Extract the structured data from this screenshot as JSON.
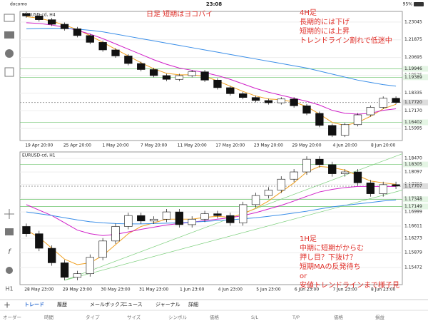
{
  "status_bar": {
    "carrier": "docomo",
    "time": "23:08",
    "battery": "95%"
  },
  "left_toolbar": [
    "f",
    "H1"
  ],
  "charts": [
    {
      "symbol": "EURUSD-cd, H4",
      "ylim": [
        1.152,
        1.2375
      ],
      "yticks": [
        1.23045,
        1.21875,
        1.20695,
        1.19525,
        1.18335,
        {
          "value": 1.1717,
          "label": "1.17170"
        },
        1.15995
      ],
      "levels": [
        1.19946,
        1.19389,
        1.16402
      ],
      "current": {
        "value": 1.1772,
        "label": "1.17720"
      },
      "dates": [
        "19 Apr 20:00",
        "25 Apr 20:00",
        "1 May 20:00",
        "7 May 20:00",
        "11 May 20:00",
        "17 May 20:00",
        "23 May 20:00",
        "29 May 20:00",
        "4 Jun 20:00",
        "8 Jun 20:00"
      ],
      "candles": {
        "open": [
          1.236,
          1.2345,
          1.232,
          1.229,
          1.226,
          1.2215,
          1.217,
          1.212,
          1.208,
          1.203,
          1.199,
          1.195,
          1.1925,
          1.195,
          1.1975,
          1.192,
          1.187,
          1.183,
          1.1805,
          1.1785,
          1.177,
          1.1795,
          1.175,
          1.17,
          1.162,
          1.1555,
          1.1625,
          1.169,
          1.174,
          1.18
        ],
        "high": [
          1.2372,
          1.2357,
          1.2332,
          1.2302,
          1.2272,
          1.2227,
          1.2182,
          1.2132,
          1.2092,
          1.2042,
          1.2002,
          1.1962,
          1.1962,
          1.1987,
          1.1987,
          1.1932,
          1.1882,
          1.1842,
          1.1817,
          1.1797,
          1.1807,
          1.1807,
          1.1762,
          1.1712,
          1.1632,
          1.1637,
          1.1702,
          1.1752,
          1.1812,
          1.1812
        ],
        "low": [
          1.2333,
          1.2308,
          1.2278,
          1.2248,
          1.2203,
          1.2158,
          1.2108,
          1.2068,
          1.2018,
          1.1978,
          1.1938,
          1.1913,
          1.1913,
          1.1938,
          1.1908,
          1.1858,
          1.1818,
          1.1793,
          1.1773,
          1.1758,
          1.1758,
          1.1738,
          1.1688,
          1.1608,
          1.1543,
          1.1543,
          1.1613,
          1.1678,
          1.1728,
          1.176
        ],
        "close": [
          1.2345,
          1.232,
          1.229,
          1.226,
          1.2215,
          1.217,
          1.212,
          1.208,
          1.203,
          1.199,
          1.195,
          1.1925,
          1.195,
          1.1975,
          1.192,
          1.187,
          1.183,
          1.1805,
          1.1785,
          1.177,
          1.1795,
          1.175,
          1.17,
          1.162,
          1.1555,
          1.1625,
          1.169,
          1.174,
          1.18,
          1.1772
        ]
      },
      "ma": [
        {
          "color": "#f0a020",
          "values": [
            1.234,
            1.233,
            1.231,
            1.2285,
            1.2255,
            1.2215,
            1.217,
            1.2125,
            1.208,
            1.2035,
            1.1995,
            1.1965,
            1.1955,
            1.1955,
            1.1945,
            1.1915,
            1.188,
            1.1845,
            1.1815,
            1.1795,
            1.179,
            1.1775,
            1.1745,
            1.1695,
            1.164,
            1.162,
            1.164,
            1.168,
            1.173,
            1.176
          ]
        },
        {
          "color": "#d020c8",
          "values": [
            1.23,
            1.2295,
            1.2285,
            1.227,
            1.225,
            1.2225,
            1.2195,
            1.216,
            1.2125,
            1.209,
            1.2055,
            1.2025,
            1.2,
            1.1985,
            1.197,
            1.195,
            1.1925,
            1.1895,
            1.1865,
            1.184,
            1.182,
            1.18,
            1.178,
            1.1755,
            1.172,
            1.17,
            1.1695,
            1.17,
            1.172,
            1.173
          ]
        },
        {
          "color": "#3a8ee8",
          "values": [
            1.226,
            1.2262,
            1.2263,
            1.2262,
            1.2258,
            1.225,
            1.224,
            1.2225,
            1.221,
            1.2195,
            1.218,
            1.2165,
            1.215,
            1.2135,
            1.212,
            1.2105,
            1.209,
            1.2075,
            1.206,
            1.2045,
            1.203,
            1.2015,
            1.2,
            1.198,
            1.196,
            1.194,
            1.192,
            1.1905,
            1.189,
            1.188
          ]
        }
      ],
      "annotations": [
        [
          "日足 短期はヨコバイ"
        ],
        [
          "4H足",
          "長期的には下げ",
          "短期的には上昇",
          "トレンドライン割れで低迷中"
        ]
      ]
    },
    {
      "symbol": "EURUSD-cd, H1",
      "ylim": [
        1.15,
        1.1865
      ],
      "yticks": [
        {
          "value": 1.1847,
          "label": "1.18470"
        },
        1.18097,
        {
          "value": 1.1776,
          "label": "1.17760"
        },
        1.17375,
        1.16999,
        1.16611,
        1.16273,
        1.15879,
        1.15472
      ],
      "levels": [
        1.18305,
        1.17348,
        1.17149
      ],
      "current": 1.17707,
      "dates": [
        "28 May 23:00",
        "29 May 23:00",
        "30 May 23:00",
        "31 May 23:00",
        "1 Jun 23:00",
        "4 Jun 23:00",
        "5 Jun 23:00",
        "6 Jun 23:00",
        "7 Jun 23:00",
        "8 Jun 23:00"
      ],
      "candles": {
        "open": [
          1.166,
          1.164,
          1.16,
          1.156,
          1.152,
          1.153,
          1.1575,
          1.162,
          1.166,
          1.169,
          1.1675,
          1.168,
          1.17,
          1.1665,
          1.168,
          1.1695,
          1.169,
          1.167,
          1.172,
          1.1745,
          1.176,
          1.179,
          1.181,
          1.1845,
          1.183,
          1.1805,
          1.181,
          1.178,
          1.175,
          1.1775
        ],
        "high": [
          1.1668,
          1.1648,
          1.1608,
          1.1568,
          1.1538,
          1.1583,
          1.1628,
          1.1668,
          1.1698,
          1.1698,
          1.1688,
          1.1708,
          1.1708,
          1.1688,
          1.1703,
          1.1703,
          1.1698,
          1.1728,
          1.1753,
          1.1768,
          1.1798,
          1.1818,
          1.1853,
          1.1853,
          1.1838,
          1.1818,
          1.1818,
          1.1788,
          1.1783,
          1.1783
        ],
        "low": [
          1.1632,
          1.1592,
          1.1552,
          1.1512,
          1.1512,
          1.1522,
          1.1567,
          1.1612,
          1.1652,
          1.1667,
          1.1667,
          1.1672,
          1.1657,
          1.1657,
          1.1672,
          1.1682,
          1.1662,
          1.1662,
          1.1712,
          1.1737,
          1.1752,
          1.1782,
          1.1802,
          1.1822,
          1.1797,
          1.1797,
          1.1772,
          1.1742,
          1.1742,
          1.1763
        ],
        "close": [
          1.164,
          1.16,
          1.156,
          1.152,
          1.153,
          1.1575,
          1.162,
          1.166,
          1.169,
          1.1675,
          1.168,
          1.17,
          1.1665,
          1.168,
          1.1695,
          1.169,
          1.167,
          1.172,
          1.1745,
          1.176,
          1.179,
          1.181,
          1.1845,
          1.183,
          1.1805,
          1.181,
          1.178,
          1.175,
          1.1775,
          1.1771
        ]
      },
      "ma": [
        {
          "color": "#f0a020",
          "values": [
            1.165,
            1.163,
            1.16,
            1.157,
            1.1555,
            1.156,
            1.158,
            1.161,
            1.164,
            1.166,
            1.167,
            1.168,
            1.168,
            1.168,
            1.1685,
            1.1688,
            1.1685,
            1.1695,
            1.171,
            1.173,
            1.1755,
            1.178,
            1.181,
            1.1825,
            1.1822,
            1.1815,
            1.18,
            1.1785,
            1.178,
            1.1776
          ]
        },
        {
          "color": "#d020c8",
          "values": [
            1.172,
            1.1705,
            1.169,
            1.167,
            1.165,
            1.164,
            1.1635,
            1.1638,
            1.1645,
            1.1652,
            1.1658,
            1.1664,
            1.1668,
            1.1672,
            1.1676,
            1.168,
            1.1684,
            1.169,
            1.1698,
            1.1708,
            1.1718,
            1.173,
            1.1743,
            1.1755,
            1.1762,
            1.1767,
            1.177,
            1.177,
            1.177,
            1.177
          ]
        },
        {
          "color": "#3a8ee8",
          "values": [
            1.17,
            1.1695,
            1.169,
            1.1684,
            1.1678,
            1.1673,
            1.167,
            1.1668,
            1.1667,
            1.1667,
            1.1668,
            1.1669,
            1.167,
            1.1672,
            1.1674,
            1.1676,
            1.1678,
            1.1681,
            1.1684,
            1.1688,
            1.1692,
            1.1697,
            1.1702,
            1.1708,
            1.1714,
            1.1718,
            1.1722,
            1.1726,
            1.173,
            1.1733
          ]
        }
      ],
      "annotations": [
        [
          "1H足",
          "中期に短期がからむ",
          "押し目？下抜け？",
          "短期MAの反発待ち",
          "or",
          "安値トレンドラインまで様子見"
        ]
      ]
    }
  ],
  "tabs": [
    "トレード",
    "履歴",
    "メールボックス",
    "ニュース",
    "ジャーナル",
    "詳細"
  ],
  "columns": [
    "オーダー",
    "時間",
    "タイプ",
    "サイズ",
    "シンボル",
    "価格",
    "S/L",
    "T/P",
    "価格",
    "損益"
  ]
}
